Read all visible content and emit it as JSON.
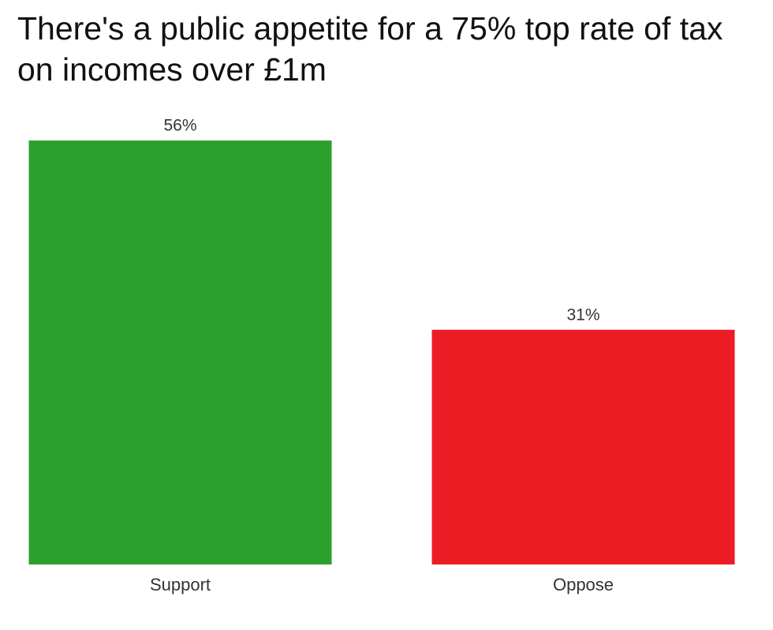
{
  "chart_data": {
    "type": "bar",
    "title": "There's a public appetite for a 75% top rate of tax on incomes over £1m",
    "categories": [
      "Support",
      "Oppose"
    ],
    "values": [
      56,
      31
    ],
    "value_labels": [
      "56%",
      "31%"
    ],
    "colors": [
      "#2ca02c",
      "#ec1c24"
    ]
  }
}
